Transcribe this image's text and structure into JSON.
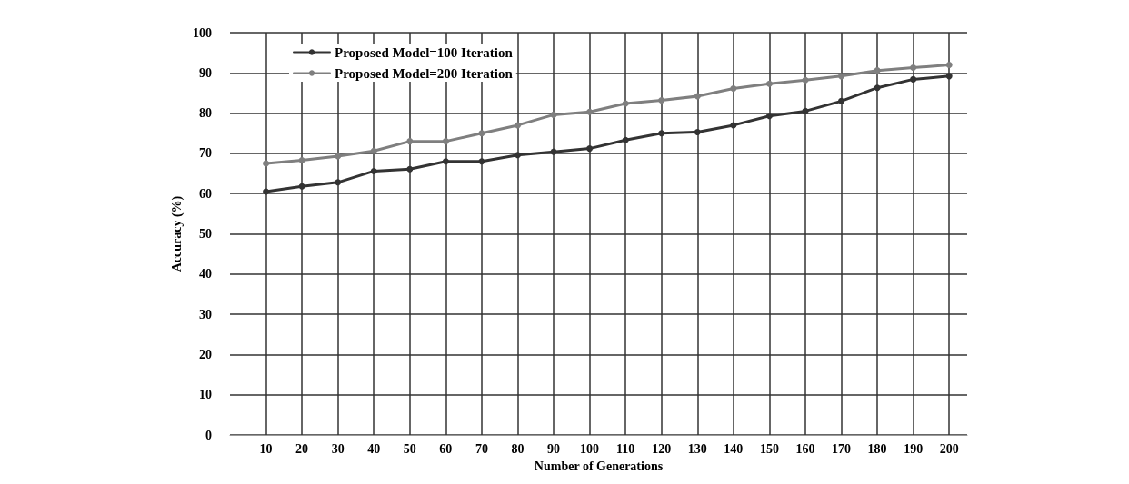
{
  "chart_data": {
    "type": "line",
    "xlabel": "Number of Generations",
    "ylabel": "Accuracy (%)",
    "x": [
      10,
      20,
      30,
      40,
      50,
      60,
      70,
      80,
      90,
      100,
      110,
      120,
      130,
      140,
      150,
      160,
      170,
      180,
      190,
      200
    ],
    "xlim": [
      0,
      205
    ],
    "xticks": [
      10,
      20,
      30,
      40,
      50,
      60,
      70,
      80,
      90,
      100,
      110,
      120,
      130,
      140,
      150,
      160,
      170,
      180,
      190,
      200
    ],
    "ylim": [
      0,
      100
    ],
    "yticks": [
      0,
      10,
      20,
      30,
      40,
      50,
      60,
      70,
      80,
      90,
      100
    ],
    "grid": true,
    "legend": "top left",
    "marker": "circle",
    "line_style": "solid",
    "series": [
      {
        "name": "Proposed Model=100 Iteration",
        "color": "#333333",
        "values": [
          60.5,
          61.8,
          62.8,
          65.6,
          66.1,
          68,
          68,
          69.6,
          70.4,
          71.2,
          73.3,
          75,
          75.3,
          77,
          79.3,
          80.5,
          83,
          86.3,
          88.4,
          89.2
        ]
      },
      {
        "name": "Proposed Model=200 Iteration",
        "color": "#7f7f7f",
        "values": [
          67.5,
          68.3,
          69.3,
          70.6,
          73,
          73,
          75,
          77,
          79.6,
          80.3,
          82.4,
          83.2,
          84.2,
          86.1,
          87.3,
          88.2,
          89.2,
          90.6,
          91.3,
          92
        ]
      }
    ]
  }
}
